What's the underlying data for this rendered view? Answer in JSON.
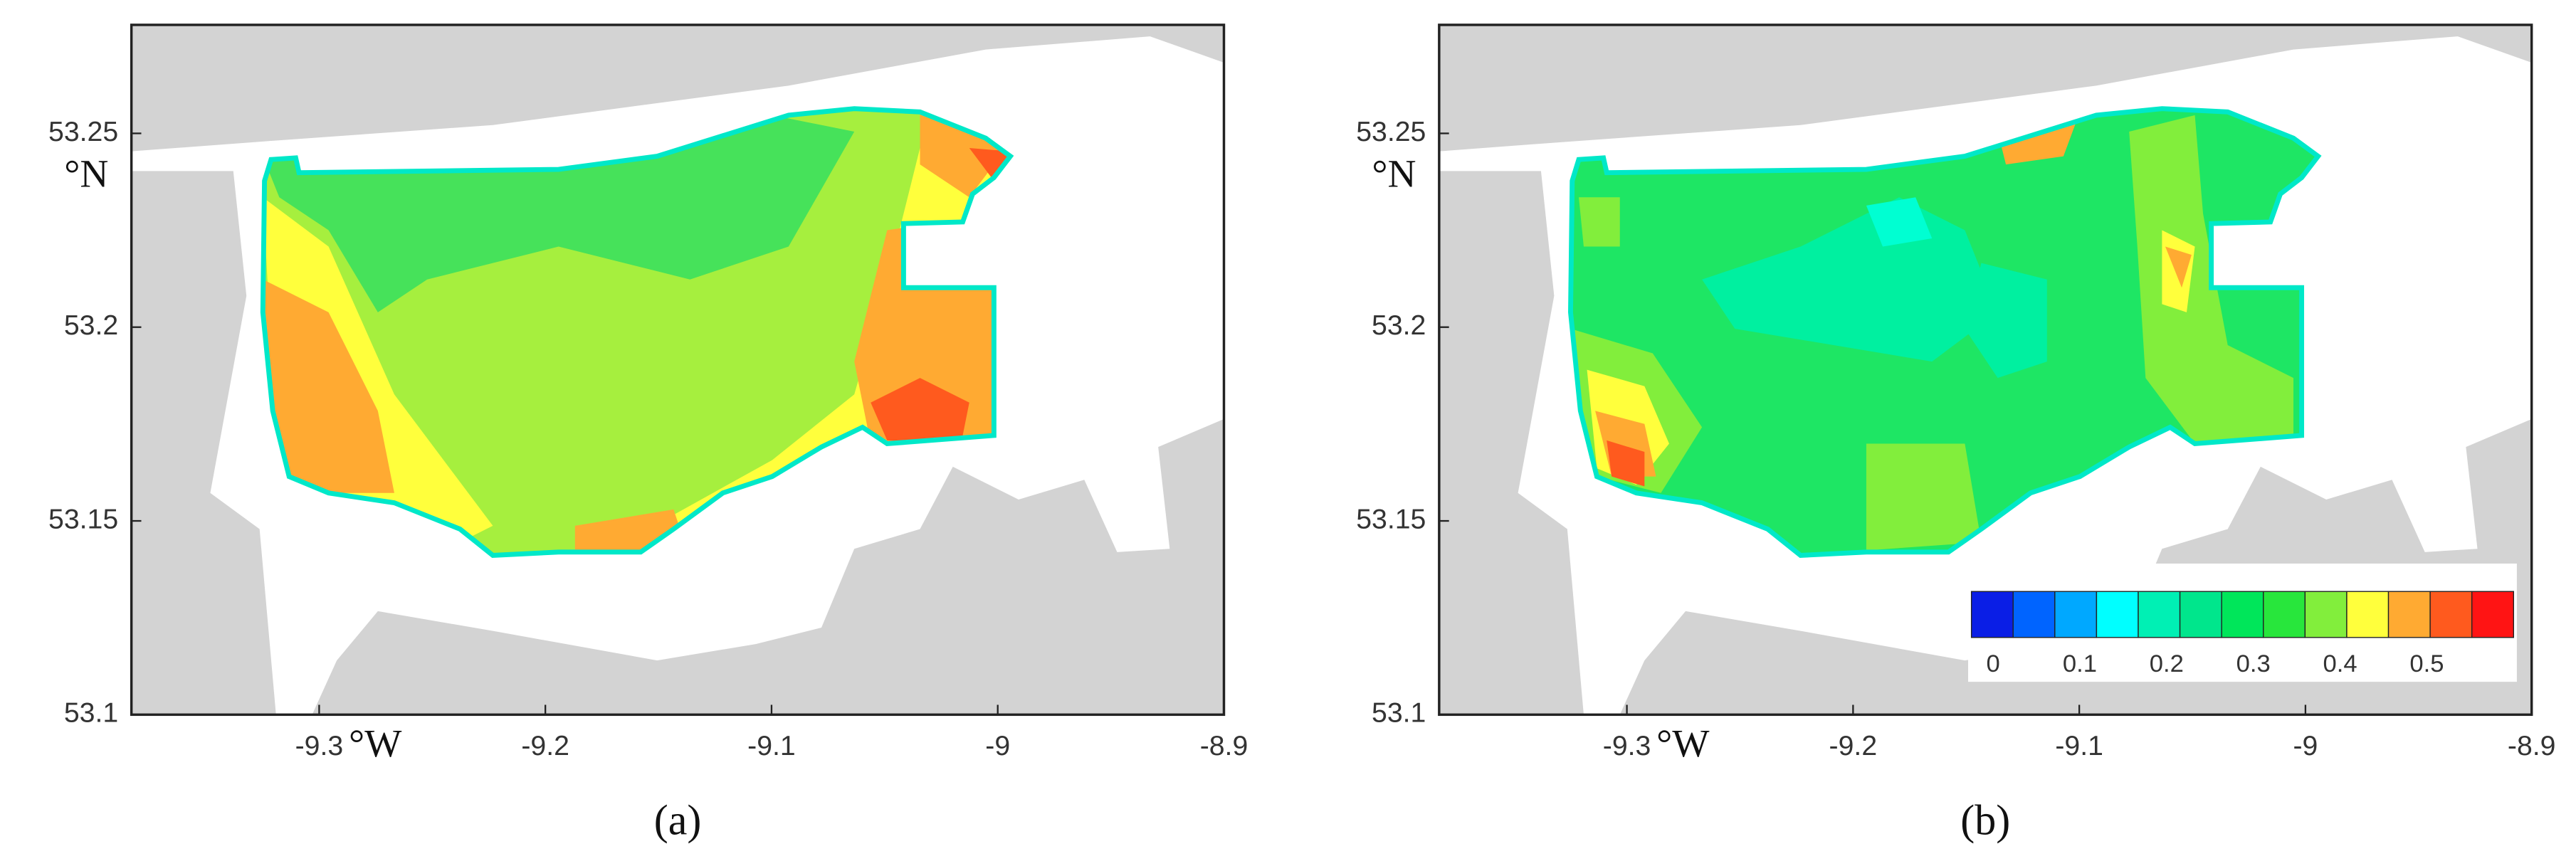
{
  "panels": [
    {
      "label": "(a)",
      "x_label": "°W",
      "y_label": "°N",
      "xlim": [
        -9.383,
        -8.9
      ],
      "ylim": [
        53.1,
        53.278
      ],
      "xticks": [
        -9.3,
        -9.2,
        -9.1,
        -9,
        -8.9
      ],
      "yticks": [
        53.1,
        53.15,
        53.2,
        53.25
      ]
    },
    {
      "label": "(b)",
      "x_label": "°W",
      "y_label": "°N",
      "xlim": [
        -9.383,
        -8.9
      ],
      "ylim": [
        53.1,
        53.278
      ],
      "xticks": [
        -9.3,
        -9.2,
        -9.1,
        -9,
        -8.9
      ],
      "yticks": [
        53.1,
        53.15,
        53.2,
        53.25
      ]
    }
  ],
  "colorbar": {
    "lim": [
      -0.025,
      0.6
    ],
    "ticks": [
      0,
      0.1,
      0.2,
      0.3,
      0.4,
      0.5
    ],
    "colors": [
      "#0a1ee6",
      "#0064ff",
      "#00a8ff",
      "#00ffff",
      "#00f0b4",
      "#00e68c",
      "#00e65a",
      "#28e63c",
      "#82ee3c",
      "#ffff3c",
      "#ffaa32",
      "#ff5a1e",
      "#ff1414"
    ]
  }
}
